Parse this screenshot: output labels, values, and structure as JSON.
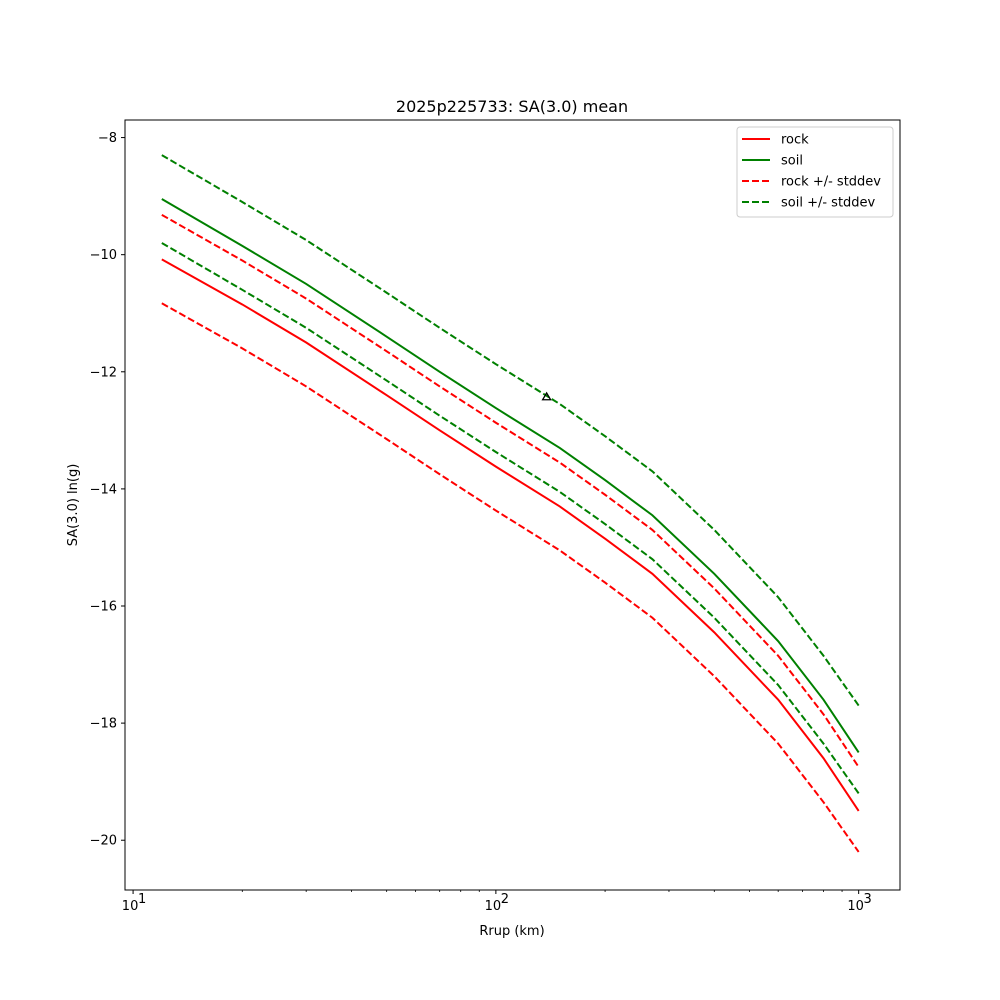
{
  "chart_data": {
    "type": "line",
    "title": "2025p225733: SA(3.0) mean",
    "xlabel": "Rrup (km)",
    "ylabel": "SA(3.0) ln(g)",
    "xscale": "log",
    "xlim": [
      9.5,
      1300
    ],
    "ylim": [
      -20.85,
      -7.7
    ],
    "x_ticks": [
      {
        "value": 10,
        "base": "10",
        "exp": "1"
      },
      {
        "value": 100,
        "base": "10",
        "exp": "2"
      },
      {
        "value": 1000,
        "base": "10",
        "exp": "3"
      }
    ],
    "y_ticks": [
      -8,
      -10,
      -12,
      -14,
      -16,
      -18,
      -20
    ],
    "y_tick_labels": [
      "−8",
      "−10",
      "−12",
      "−14",
      "−16",
      "−18",
      "−20"
    ],
    "grid": false,
    "legend_position": "top-right",
    "x": [
      12,
      20,
      30,
      50,
      70,
      100,
      150,
      200,
      270,
      400,
      600,
      800,
      1000
    ],
    "series": [
      {
        "name": "rock",
        "color": "#ff0000",
        "style": "solid",
        "values": [
          -10.08,
          -10.85,
          -11.5,
          -12.4,
          -13.0,
          -13.62,
          -14.3,
          -14.85,
          -15.45,
          -16.45,
          -17.6,
          -18.6,
          -19.5
        ]
      },
      {
        "name": "soil",
        "color": "#008000",
        "style": "solid",
        "values": [
          -9.05,
          -9.85,
          -10.5,
          -11.4,
          -12.0,
          -12.62,
          -13.3,
          -13.85,
          -14.45,
          -15.45,
          -16.6,
          -17.6,
          -18.5
        ]
      },
      {
        "name": "rock +/- stddev",
        "color": "#ff0000",
        "style": "dashed",
        "values": [
          -9.32,
          -10.1,
          -10.75,
          -11.65,
          -12.25,
          -12.87,
          -13.55,
          -14.1,
          -14.7,
          -15.7,
          -16.85,
          -17.85,
          -18.75
        ]
      },
      {
        "name": "rock +/- stddev",
        "color": "#ff0000",
        "style": "dashed",
        "legend": false,
        "values": [
          -10.83,
          -11.6,
          -12.25,
          -13.15,
          -13.75,
          -14.37,
          -15.05,
          -15.6,
          -16.2,
          -17.2,
          -18.35,
          -19.35,
          -20.2
        ]
      },
      {
        "name": "soil +/- stddev",
        "color": "#008000",
        "style": "dashed",
        "values": [
          -8.3,
          -9.1,
          -9.75,
          -10.65,
          -11.25,
          -11.87,
          -12.55,
          -13.1,
          -13.7,
          -14.7,
          -15.85,
          -16.85,
          -17.7
        ]
      },
      {
        "name": "soil +/- stddev",
        "color": "#008000",
        "style": "dashed",
        "legend": false,
        "values": [
          -9.8,
          -10.6,
          -11.25,
          -12.15,
          -12.75,
          -13.37,
          -14.05,
          -14.6,
          -15.2,
          -16.2,
          -17.35,
          -18.35,
          -19.2
        ]
      }
    ],
    "observations": [
      {
        "x": 138,
        "y": -12.43,
        "marker": "triangle-open",
        "color": "#000000"
      }
    ]
  }
}
